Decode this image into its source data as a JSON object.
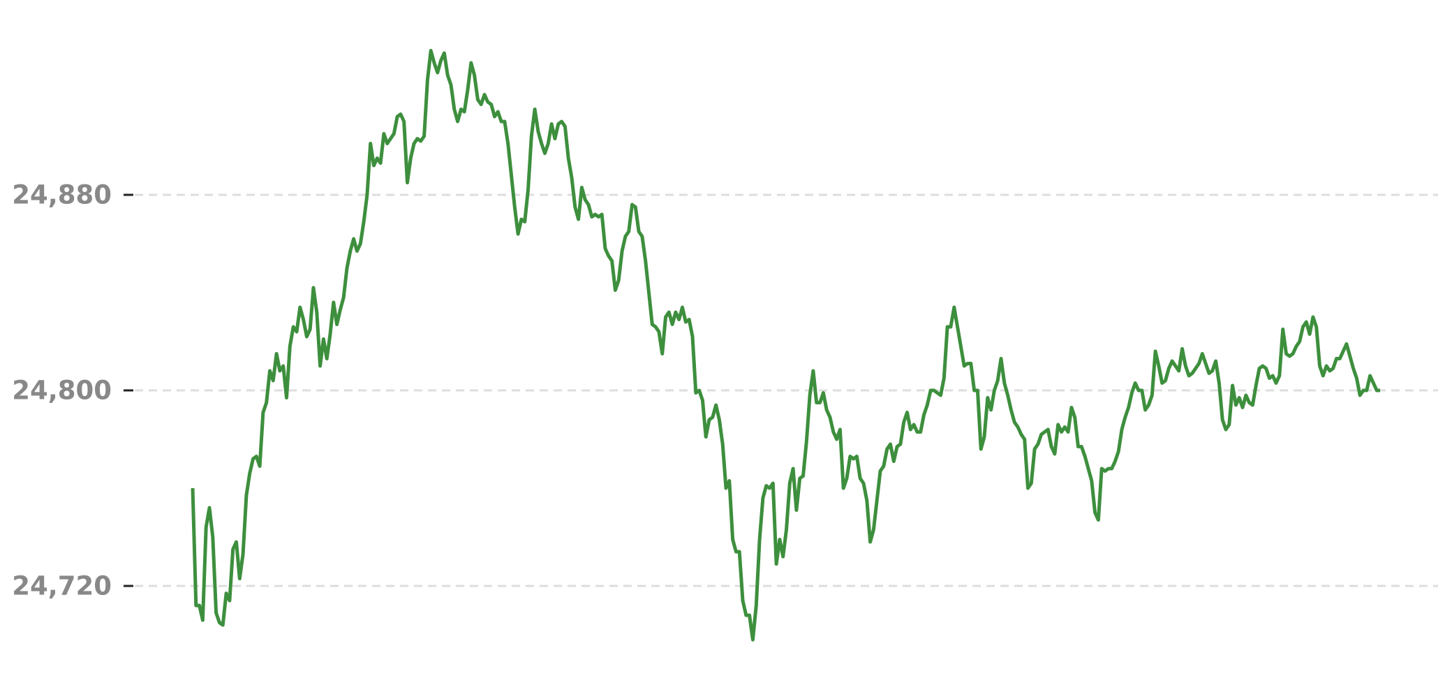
{
  "chart_data": {
    "type": "line",
    "color": "#3d8f3d",
    "grid": true,
    "ylim": [
      24690,
      24950
    ],
    "yticks": [
      {
        "value": 24720,
        "label": "24,720"
      },
      {
        "value": 24800,
        "label": "24,800"
      },
      {
        "value": 24880,
        "label": "24,880"
      }
    ],
    "values": [
      24760,
      24712,
      24712,
      24706,
      24744,
      24752,
      24740,
      24709,
      24705,
      24704,
      24717,
      24714,
      24735,
      24738,
      24723,
      24733,
      24757,
      24766,
      24772,
      24773,
      24769,
      24791,
      24795,
      24808,
      24804,
      24815,
      24808,
      24810,
      24797,
      24818,
      24826,
      24824,
      24834,
      24829,
      24822,
      24825,
      24842,
      24832,
      24810,
      24821,
      24813,
      24823,
      24836,
      24827,
      24833,
      24838,
      24850,
      24857,
      24862,
      24857,
      24860,
      24869,
      24880,
      24901,
      24892,
      24895,
      24893,
      24905,
      24901,
      24903,
      24905,
      24912,
      24913,
      24910,
      24885,
      24895,
      24901,
      24903,
      24902,
      24904,
      24927,
      24939,
      24934,
      24930,
      24935,
      24938,
      24929,
      24925,
      24915,
      24910,
      24915,
      24914,
      24923,
      24934,
      24929,
      24919,
      24917,
      24921,
      24918,
      24917,
      24912,
      24914,
      24910,
      24910,
      24901,
      24888,
      24875,
      24864,
      24870,
      24869,
      24882,
      24904,
      24915,
      24906,
      24901,
      24897,
      24901,
      24909,
      24903,
      24909,
      24910,
      24908,
      24895,
      24887,
      24875,
      24870,
      24883,
      24878,
      24876,
      24871,
      24872,
      24871,
      24872,
      24858,
      24855,
      24853,
      24841,
      24845,
      24857,
      24863,
      24865,
      24876,
      24875,
      24865,
      24863,
      24853,
      24840,
      24827,
      24826,
      24824,
      24815,
      24830,
      24832,
      24827,
      24832,
      24829,
      24834,
      24828,
      24829,
      24822,
      24799,
      24800,
      24796,
      24781,
      24788,
      24789,
      24794,
      24788,
      24778,
      24760,
      24763,
      24739,
      24734,
      24734,
      24714,
      24708,
      24708,
      24698,
      24712,
      24739,
      24756,
      24761,
      24760,
      24762,
      24729,
      24739,
      24732,
      24743,
      24762,
      24768,
      24751,
      24764,
      24765,
      24779,
      24798,
      24808,
      24795,
      24795,
      24799,
      24792,
      24789,
      24783,
      24780,
      24784,
      24760,
      24764,
      24773,
      24772,
      24773,
      24764,
      24762,
      24755,
      24738,
      24743,
      24755,
      24767,
      24769,
      24776,
      24778,
      24771,
      24777,
      24778,
      24787,
      24791,
      24784,
      24786,
      24783,
      24783,
      24790,
      24794,
      24800,
      24800,
      24799,
      24798,
      24805,
      24826,
      24826,
      24834,
      24826,
      24818,
      24810,
      24811,
      24811,
      24800,
      24800,
      24776,
      24781,
      24797,
      24792,
      24800,
      24804,
      24813,
      24803,
      24798,
      24792,
      24787,
      24785,
      24782,
      24780,
      24760,
      24762,
      24776,
      24778,
      24782,
      24783,
      24784,
      24777,
      24774,
      24786,
      24783,
      24785,
      24783,
      24793,
      24789,
      24777,
      24777,
      24773,
      24768,
      24763,
      24750,
      24747,
      24768,
      24767,
      24768,
      24768,
      24771,
      24775,
      24784,
      24789,
      24793,
      24799,
      24803,
      24800,
      24800,
      24792,
      24794,
      24798,
      24816,
      24810,
      24803,
      24804,
      24809,
      24812,
      24810,
      24808,
      24817,
      24810,
      24806,
      24807,
      24809,
      24811,
      24815,
      24811,
      24807,
      24808,
      24812,
      24803,
      24788,
      24784,
      24786,
      24802,
      24794,
      24797,
      24793,
      24798,
      24795,
      24794,
      24802,
      24809,
      24810,
      24809,
      24805,
      24806,
      24803,
      24806,
      24825,
      24815,
      24814,
      24815,
      24818,
      24820,
      24826,
      24828,
      24823,
      24830,
      24826,
      24810,
      24806,
      24810,
      24808,
      24809,
      24813,
      24813,
      24816,
      24819,
      24814,
      24809,
      24805,
      24798,
      24800,
      24800,
      24806,
      24803,
      24800,
      24800
    ]
  }
}
